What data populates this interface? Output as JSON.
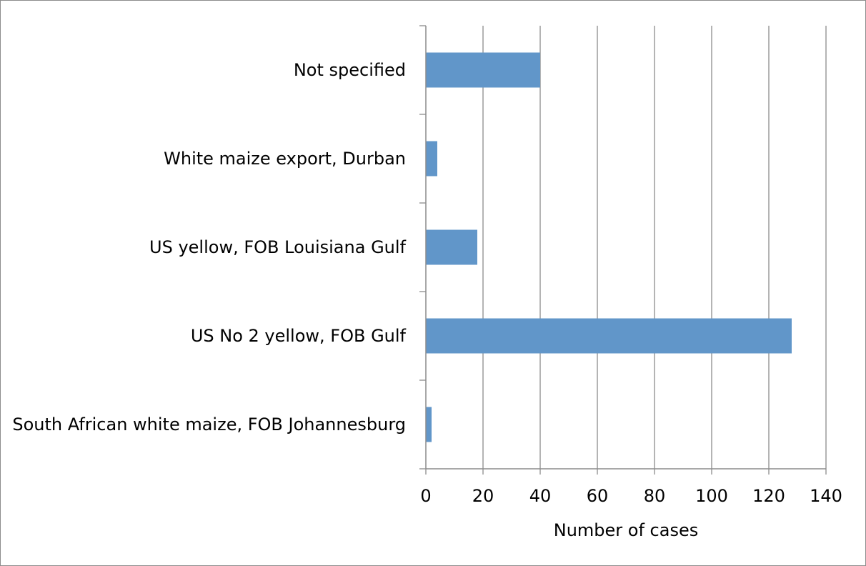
{
  "chart_data": {
    "type": "bar",
    "orientation": "horizontal",
    "title": "",
    "xlabel": "Number of cases",
    "ylabel": "",
    "categories": [
      "Not specified",
      "White maize export, Durban",
      "US yellow, FOB Louisiana Gulf",
      "US No 2 yellow, FOB Gulf",
      "South African white maize, FOB Johannesburg"
    ],
    "values": [
      40,
      4,
      18,
      128,
      2
    ],
    "xlim": [
      0,
      140
    ],
    "xticks": [
      "0",
      "20",
      "40",
      "60",
      "80",
      "100",
      "120",
      "140"
    ],
    "grid": "vertical",
    "legend": "none",
    "bar_color": "#6196C9",
    "grid_color": "#8C8C8C",
    "axis_color": "#8C8C8C"
  }
}
